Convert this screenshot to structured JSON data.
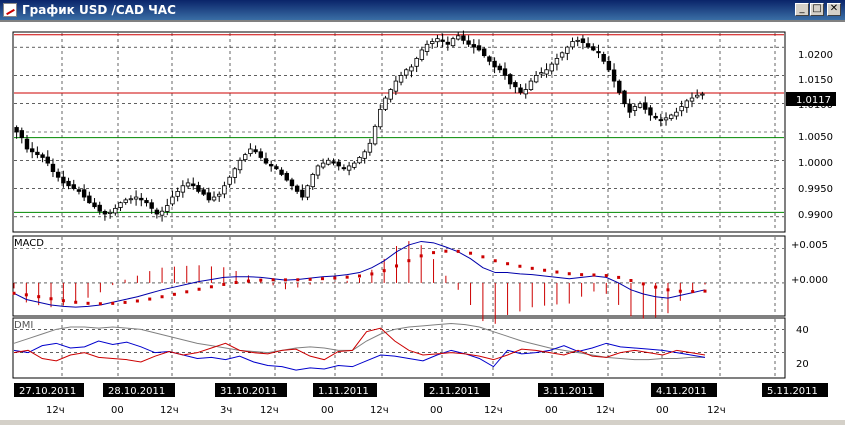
{
  "window": {
    "title": "График USD /CAD  ЧАС",
    "min_glyph": "_",
    "max_glyph": "□",
    "close_glyph": "✕"
  },
  "price_panel": {
    "y_ticks": [
      "1.0200",
      "1.0150",
      "1.0100",
      "1.0050",
      "1.0000",
      "0.9950",
      "0.9900"
    ],
    "current_price": "1.0117"
  },
  "macd_panel": {
    "label": "MACD",
    "y_ticks": [
      "+0.005",
      "+0.000"
    ]
  },
  "dmi_panel": {
    "label": "DMI",
    "y_ticks": [
      "40",
      "20"
    ]
  },
  "time_axis": {
    "dates": [
      "27.10.2011",
      "28.10.2011",
      "31.10.2011",
      "1.11.2011",
      "2.11.2011",
      "3.11.2011",
      "4.11.2011",
      "5.11.2011"
    ],
    "hours": [
      "12ч",
      "00",
      "12ч",
      "3ч",
      "12ч",
      "00",
      "12ч",
      "00",
      "12ч",
      "00",
      "12ч",
      "00",
      "12ч"
    ]
  },
  "colors": {
    "bull": "#ffffff",
    "bear": "#000000",
    "resistance": "#cc0000",
    "support": "#008800",
    "macd_line": "#0000aa",
    "signal_line": "#cc0000",
    "adx": "#808080",
    "dmi_plus": "#0000cc",
    "dmi_minus": "#cc0000"
  },
  "chart_data": {
    "type": "candlestick",
    "y_range": [
      0.9875,
      1.0225
    ],
    "resistance_levels": [
      1.0222,
      1.0119
    ],
    "support_levels": [
      1.004,
      0.9908
    ],
    "close_series": [
      1.005,
      1.004,
      1.002,
      1.0015,
      1.001,
      1.0005,
      0.9995,
      0.998,
      0.997,
      0.996,
      0.9955,
      0.995,
      0.9945,
      0.9935,
      0.9925,
      0.9918,
      0.991,
      0.9905,
      0.9908,
      0.9915,
      0.9925,
      0.993,
      0.9932,
      0.9935,
      0.993,
      0.9925,
      0.9915,
      0.9905,
      0.991,
      0.992,
      0.9935,
      0.9945,
      0.9955,
      0.996,
      0.9955,
      0.9945,
      0.994,
      0.993,
      0.9935,
      0.994,
      0.9955,
      0.997,
      0.9985,
      1.0,
      1.001,
      1.002,
      1.0015,
      1.0005,
      0.9995,
      0.999,
      0.9985,
      0.9975,
      0.9965,
      0.9955,
      0.9945,
      0.9935,
      0.9955,
      0.9975,
      0.999,
      0.9995,
      1.0,
      0.9995,
      0.999,
      0.9985,
      0.999,
      0.9995,
      1.0005,
      1.0015,
      1.003,
      1.006,
      1.009,
      1.011,
      1.0125,
      1.014,
      1.015,
      1.016,
      1.0165,
      1.018,
      1.0195,
      1.0205,
      1.021,
      1.0215,
      1.021,
      1.0205,
      1.0215,
      1.022,
      1.0212,
      1.0205,
      1.02,
      1.0195,
      1.0185,
      1.0175,
      1.0165,
      1.016,
      1.015,
      1.0135,
      1.013,
      1.012,
      1.0125,
      1.014,
      1.015,
      1.0155,
      1.016,
      1.017,
      1.018,
      1.019,
      1.02,
      1.021,
      1.0212,
      1.0208,
      1.02,
      1.0195,
      1.019,
      1.0175,
      1.016,
      1.014,
      1.012,
      1.01,
      1.0085,
      1.0095,
      1.01,
      1.009,
      1.008,
      1.0075,
      1.007,
      1.0075,
      1.008,
      1.0085,
      1.0095,
      1.0105,
      1.011,
      1.0115,
      1.0117
    ],
    "macd": [
      -0.0015,
      -0.0024,
      -0.0028,
      -0.0032,
      -0.0034,
      -0.0035,
      -0.0034,
      -0.0032,
      -0.0028,
      -0.0024,
      -0.002,
      -0.0015,
      -0.001,
      -0.0006,
      -0.0002,
      0.0002,
      0.0005,
      0.0008,
      0.0009,
      0.0009,
      0.0008,
      0.0006,
      0.0004,
      0.0005,
      0.0007,
      0.0009,
      0.001,
      0.0012,
      0.0015,
      0.0022,
      0.0032,
      0.0045,
      0.0055,
      0.006,
      0.0058,
      0.0052,
      0.0045,
      0.0035,
      0.0022,
      0.0015,
      0.0015,
      0.0013,
      0.0012,
      0.001,
      0.0008,
      0.0006,
      0.0008,
      0.001,
      0.0008,
      0.0,
      -0.001,
      -0.0016,
      -0.002,
      -0.0022,
      -0.0018,
      -0.0014,
      -0.001
    ],
    "dmi_plus": [
      22,
      20,
      26,
      28,
      24,
      25,
      30,
      27,
      29,
      25,
      20,
      21,
      18,
      15,
      16,
      14,
      17,
      12,
      9,
      8,
      5,
      7,
      6,
      9,
      8,
      13,
      18,
      17,
      15,
      13,
      18,
      22,
      19,
      15,
      8,
      22,
      19,
      20,
      22,
      26,
      21,
      24,
      28,
      25,
      24,
      23,
      22,
      20,
      18,
      16
    ],
    "dmi_minus": [
      20,
      22,
      15,
      13,
      18,
      20,
      16,
      15,
      14,
      12,
      17,
      21,
      18,
      20,
      24,
      28,
      22,
      20,
      19,
      22,
      23,
      17,
      14,
      21,
      22,
      38,
      41,
      30,
      22,
      18,
      19,
      20,
      19,
      17,
      14,
      18,
      23,
      22,
      20,
      18,
      22,
      17,
      16,
      20,
      22,
      20,
      18,
      22,
      20,
      18
    ],
    "adx": [
      28,
      32,
      36,
      40,
      42,
      42,
      41,
      42,
      41,
      40,
      37,
      34,
      31,
      28,
      26,
      24,
      22,
      21,
      20,
      22,
      24,
      25,
      24,
      22,
      22,
      30,
      36,
      40,
      42,
      43,
      44,
      45,
      44,
      42,
      38,
      34,
      30,
      27,
      24,
      22,
      20,
      18,
      16,
      15,
      14,
      14,
      15,
      15,
      16,
      16
    ]
  }
}
